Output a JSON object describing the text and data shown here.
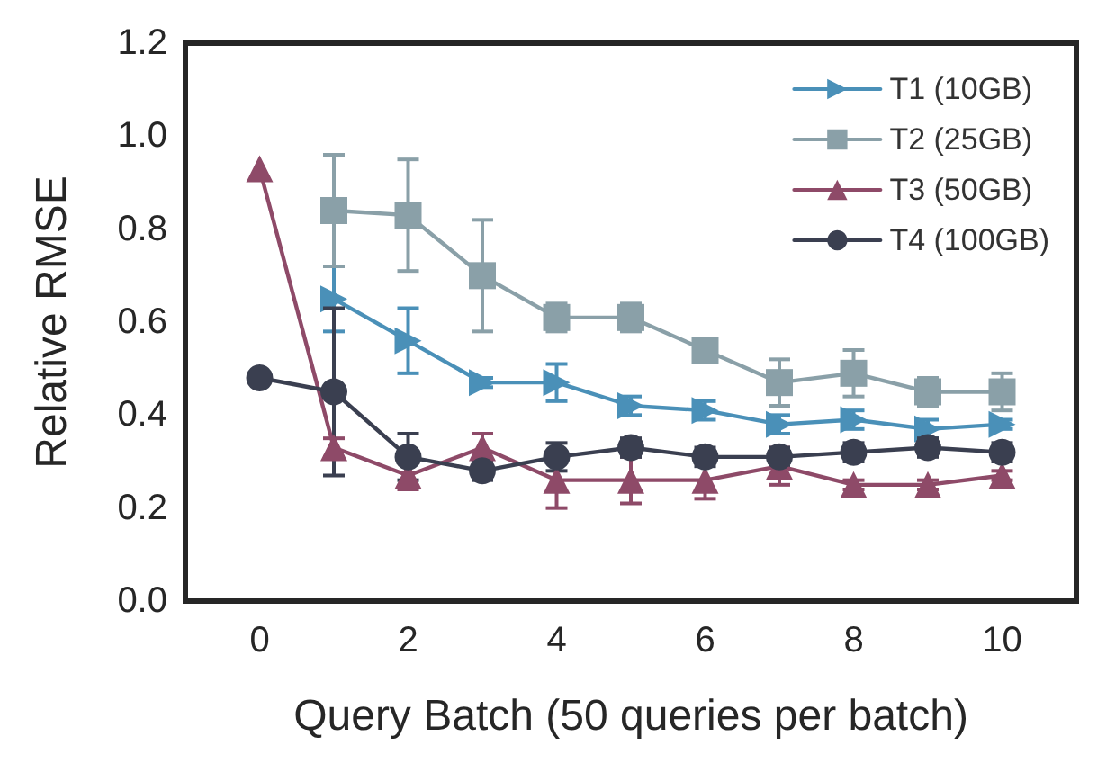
{
  "chart_data": {
    "type": "line",
    "xlabel": "Query Batch (50 queries per batch)",
    "ylabel": "Relative RMSE",
    "x": [
      0,
      1,
      2,
      3,
      4,
      5,
      6,
      7,
      8,
      9,
      10
    ],
    "xlim": [
      -1,
      11
    ],
    "xticks": [
      0,
      2,
      4,
      6,
      8,
      10
    ],
    "ylim": [
      0,
      1.2
    ],
    "yticks": [
      {
        "value": 0,
        "label": "0.0"
      },
      0.2,
      0.4,
      0.6,
      0.8,
      {
        "value": 1,
        "label": "1.0"
      },
      1.2
    ],
    "grid": false,
    "legend": "top right",
    "line_style": "solid",
    "series": [
      {
        "name": "T1 (10GB)",
        "color": "#4a90b8",
        "marker": "triangle-right",
        "values": [
          null,
          0.65,
          0.56,
          0.47,
          0.47,
          0.42,
          0.41,
          0.38,
          0.39,
          0.37,
          0.38
        ],
        "errors": [
          null,
          0.07,
          0.07,
          0.01,
          0.04,
          0.02,
          0.02,
          0.02,
          0.02,
          0.02,
          0.01
        ]
      },
      {
        "name": "T2 (25GB)",
        "color": "#8aa0a8",
        "marker": "square",
        "values": [
          null,
          0.84,
          0.83,
          0.7,
          0.61,
          0.61,
          0.54,
          0.47,
          0.49,
          0.45,
          0.45
        ],
        "errors": [
          null,
          0.12,
          0.12,
          0.12,
          0.03,
          0.03,
          0.02,
          0.05,
          0.05,
          0.03,
          0.04
        ]
      },
      {
        "name": "T3 (50GB)",
        "color": "#8e4a68",
        "marker": "triangle",
        "values": [
          0.93,
          0.33,
          0.27,
          0.33,
          0.26,
          0.26,
          0.26,
          0.29,
          0.25,
          0.25,
          0.27
        ],
        "errors": [
          null,
          0.02,
          0.03,
          0.03,
          0.06,
          0.05,
          0.04,
          0.04,
          0.01,
          0.01,
          0.01
        ]
      },
      {
        "name": "T4 (100GB)",
        "color": "#3a3f50",
        "marker": "circle",
        "values": [
          0.48,
          0.45,
          0.31,
          0.28,
          0.31,
          0.33,
          0.31,
          0.31,
          0.32,
          0.33,
          0.32
        ],
        "errors": [
          null,
          0.18,
          0.05,
          0.02,
          0.03,
          0.02,
          0.02,
          0.02,
          0.02,
          0.02,
          0.02
        ]
      }
    ]
  }
}
